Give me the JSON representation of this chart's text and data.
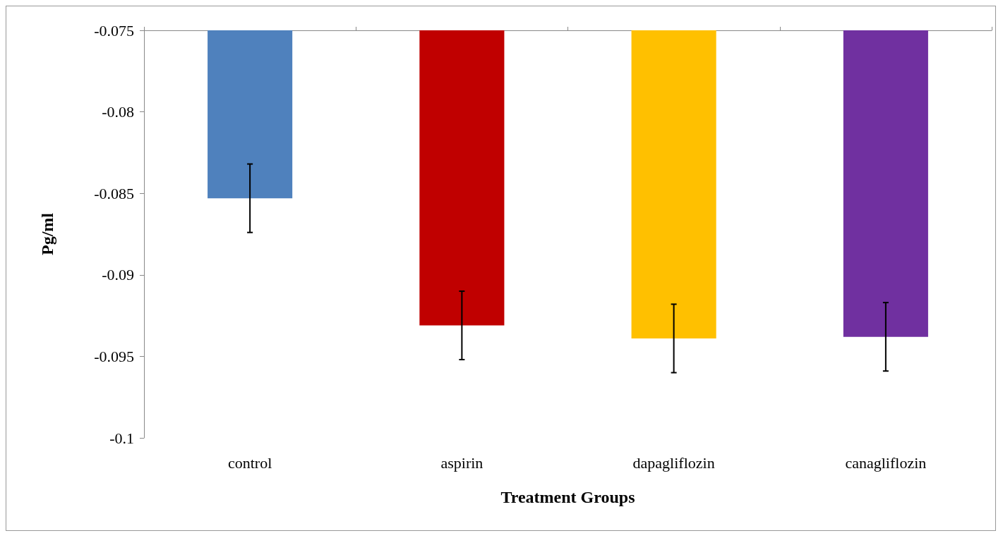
{
  "chart_data": {
    "type": "bar",
    "xlabel": "Treatment Groups",
    "ylabel": "Pg/ml",
    "categories": [
      "control",
      "aspirin",
      "dapagliflozin",
      "canagliflozin"
    ],
    "values": [
      -0.0853,
      -0.0931,
      -0.0939,
      -0.0938
    ],
    "colors": [
      "#4f81bd",
      "#c00000",
      "#ffc000",
      "#7030a0"
    ],
    "errors": [
      0.0021,
      0.0021,
      0.0021,
      0.0021
    ],
    "ylim": [
      -0.1,
      -0.075
    ],
    "yticks": [
      -0.1,
      -0.095,
      -0.09,
      -0.085,
      -0.08,
      -0.075
    ],
    "grid": false
  }
}
